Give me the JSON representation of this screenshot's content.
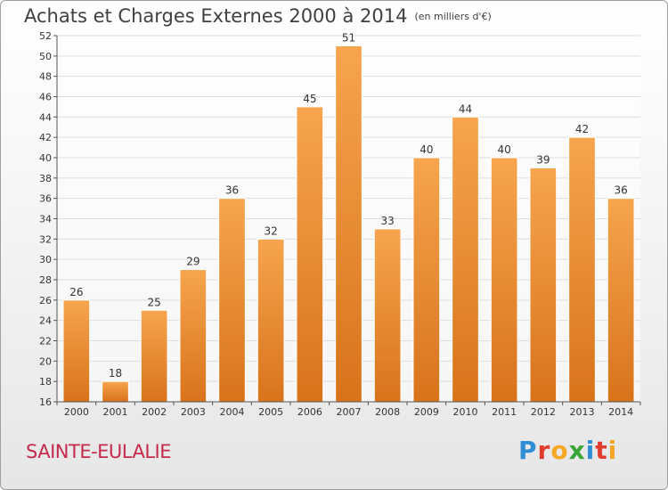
{
  "header": {
    "title": "Achats et Charges Externes 2000 à 2014",
    "subtitle": "(en milliers d'€)"
  },
  "footer": {
    "place": "SAINTE-EULALIE",
    "logo_letters": [
      "P",
      "r",
      "o",
      "x",
      "i",
      "t",
      "i"
    ],
    "logo_colors": [
      "#2e8fd6",
      "#e03b2c",
      "#f5a623",
      "#3aa63a",
      "#2e8fd6",
      "#e03b2c",
      "#f5a623"
    ]
  },
  "colors": {
    "bar_top": "#f6a54e",
    "bar_bottom": "#d8731b",
    "grid": "#dddddd",
    "axis": "#555555",
    "text": "#333333"
  },
  "chart_data": {
    "type": "bar",
    "title": "Achats et Charges Externes 2000 à 2014",
    "subtitle": "(en milliers d'€)",
    "categories": [
      "2000",
      "2001",
      "2002",
      "2003",
      "2004",
      "2005",
      "2006",
      "2007",
      "2008",
      "2009",
      "2010",
      "2011",
      "2012",
      "2013",
      "2014"
    ],
    "values": [
      26,
      18,
      25,
      29,
      36,
      32,
      45,
      51,
      33,
      40,
      44,
      40,
      39,
      42,
      36
    ],
    "ylim": [
      16,
      52
    ],
    "yticks": [
      16,
      18,
      20,
      22,
      24,
      26,
      28,
      30,
      32,
      34,
      36,
      38,
      40,
      42,
      44,
      46,
      48,
      50,
      52
    ],
    "grid": true,
    "data_labels": true
  }
}
